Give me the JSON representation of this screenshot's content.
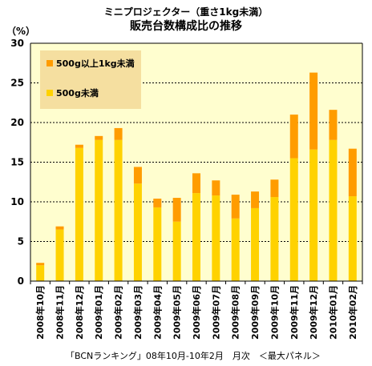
{
  "chart_data": {
    "type": "bar",
    "stacked": true,
    "title": "ミニプロジェクター（重さ1kg未満）",
    "subtitle": "販売台数構成比の推移",
    "ylabel": "（%）",
    "ylim": [
      0,
      30
    ],
    "yticks": [
      0,
      5,
      10,
      15,
      20,
      25,
      30
    ],
    "grid": true,
    "legend_position": "top-left",
    "source": "「BCNランキング」08年10月-10年2月　月次　＜最大パネル＞",
    "categories": [
      "2008年10月",
      "2008年11月",
      "2008年12月",
      "2009年01月",
      "2009年02月",
      "2009年03月",
      "2009年04月",
      "2009年05月",
      "2009年06月",
      "2009年07月",
      "2009年08月",
      "2009年09月",
      "2009年10月",
      "2009年11月",
      "2009年12月",
      "2010年01月",
      "2010年02月"
    ],
    "series": [
      {
        "name": "500g未満",
        "color": "#ffd200",
        "values": [
          2.0,
          6.5,
          16.8,
          17.8,
          17.8,
          12.3,
          9.3,
          7.5,
          11.1,
          10.8,
          7.9,
          9.2,
          10.6,
          15.5,
          16.6,
          17.8,
          10.7
        ]
      },
      {
        "name": "500g以上1kg未満",
        "color": "#ff9c00",
        "values": [
          0.3,
          0.4,
          0.4,
          0.5,
          1.5,
          2.1,
          1.1,
          3.0,
          2.5,
          1.9,
          3.0,
          2.1,
          2.2,
          5.5,
          9.7,
          3.8,
          6.0
        ]
      }
    ],
    "colors": {
      "plot_background": "#fffecf",
      "legend_background": "#f5dfa0",
      "gridline": "#000000"
    }
  }
}
